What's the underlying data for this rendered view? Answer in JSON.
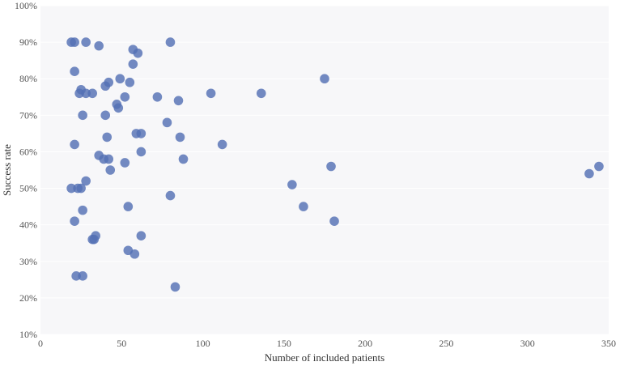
{
  "chart_data": {
    "type": "scatter",
    "title": "",
    "xlabel": "Number of included patients",
    "ylabel": "Success rate",
    "xlim": [
      0,
      350
    ],
    "ylim": [
      10,
      100
    ],
    "x_ticks": [
      0,
      50,
      100,
      150,
      200,
      250,
      300,
      350
    ],
    "y_ticks": [
      10,
      20,
      30,
      40,
      50,
      60,
      70,
      80,
      90,
      100
    ],
    "y_tick_suffix": "%",
    "grid": true,
    "colors": {
      "point": "#5470b4",
      "background": "#f7f7f9",
      "grid": "#ffffff"
    },
    "series": [
      {
        "points": [
          [
            19,
            90
          ],
          [
            21,
            90
          ],
          [
            28,
            90
          ],
          [
            36,
            89
          ],
          [
            80,
            90
          ],
          [
            57,
            88
          ],
          [
            60,
            87
          ],
          [
            57,
            84
          ],
          [
            21,
            82
          ],
          [
            49,
            80
          ],
          [
            175,
            80
          ],
          [
            42,
            79
          ],
          [
            55,
            79
          ],
          [
            40,
            78
          ],
          [
            25,
            77
          ],
          [
            24,
            76
          ],
          [
            28,
            76
          ],
          [
            32,
            76
          ],
          [
            105,
            76
          ],
          [
            136,
            76
          ],
          [
            52,
            75
          ],
          [
            72,
            75
          ],
          [
            85,
            74
          ],
          [
            47,
            73
          ],
          [
            48,
            72
          ],
          [
            26,
            70
          ],
          [
            40,
            70
          ],
          [
            78,
            68
          ],
          [
            59,
            65
          ],
          [
            62,
            65
          ],
          [
            41,
            64
          ],
          [
            86,
            64
          ],
          [
            21,
            62
          ],
          [
            112,
            62
          ],
          [
            62,
            60
          ],
          [
            36,
            59
          ],
          [
            39,
            58
          ],
          [
            42,
            58
          ],
          [
            88,
            58
          ],
          [
            52,
            57
          ],
          [
            179,
            56
          ],
          [
            344,
            56
          ],
          [
            43,
            55
          ],
          [
            338,
            54
          ],
          [
            28,
            52
          ],
          [
            155,
            51
          ],
          [
            19,
            50
          ],
          [
            23,
            50
          ],
          [
            25,
            50
          ],
          [
            80,
            48
          ],
          [
            54,
            45
          ],
          [
            162,
            45
          ],
          [
            26,
            44
          ],
          [
            21,
            41
          ],
          [
            181,
            41
          ],
          [
            34,
            37
          ],
          [
            62,
            37
          ],
          [
            32,
            36
          ],
          [
            33,
            36
          ],
          [
            54,
            33
          ],
          [
            58,
            32
          ],
          [
            22,
            26
          ],
          [
            26,
            26
          ],
          [
            83,
            23
          ]
        ]
      }
    ]
  }
}
